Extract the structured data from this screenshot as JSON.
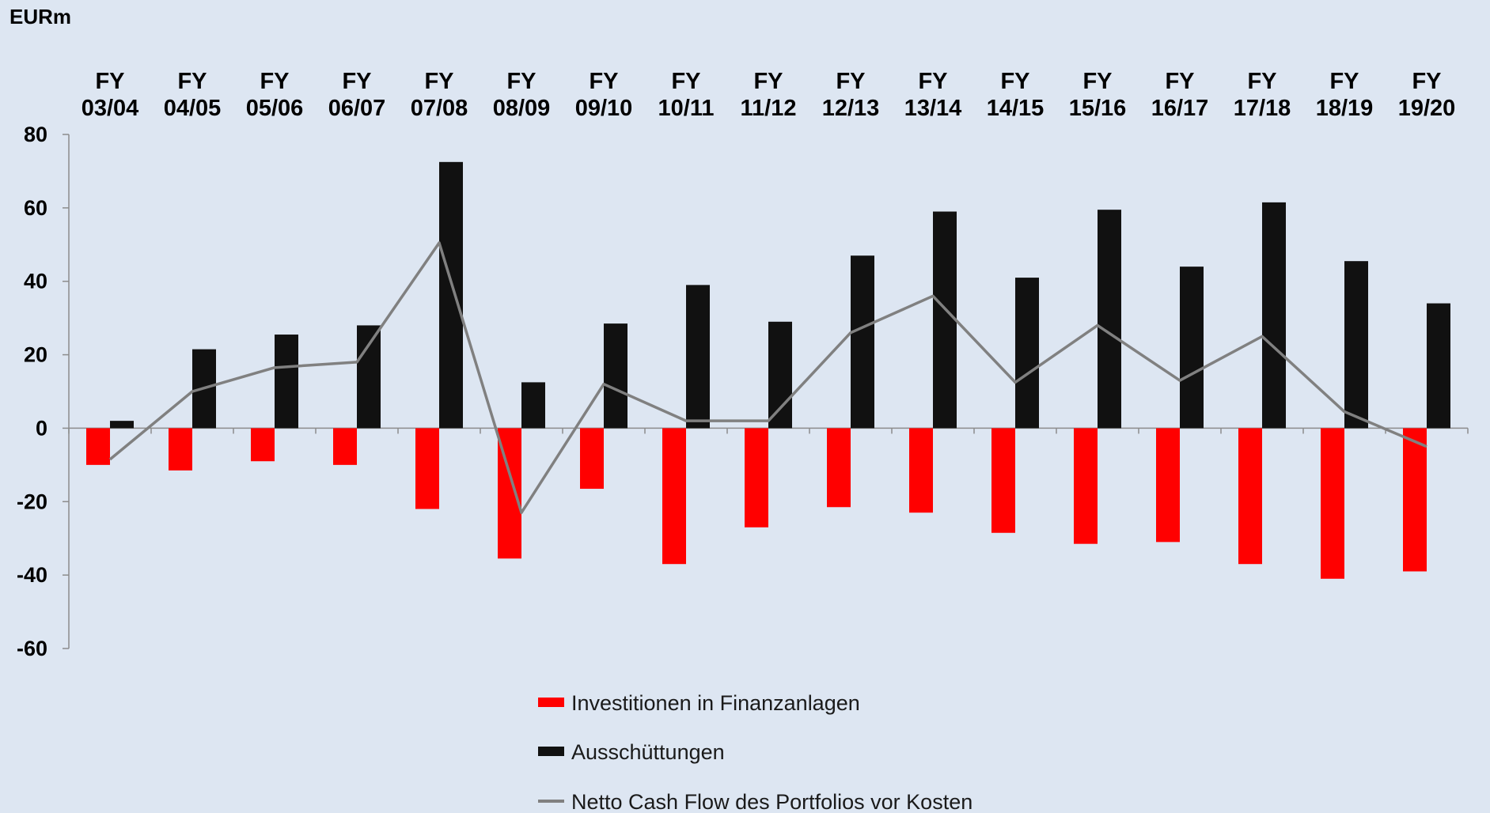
{
  "chart_data": {
    "type": "bar",
    "unit_label": "EURm",
    "categories": [
      [
        "FY",
        "03/04"
      ],
      [
        "FY",
        "04/05"
      ],
      [
        "FY",
        "05/06"
      ],
      [
        "FY",
        "06/07"
      ],
      [
        "FY",
        "07/08"
      ],
      [
        "FY",
        "08/09"
      ],
      [
        "FY",
        "09/10"
      ],
      [
        "FY",
        "10/11"
      ],
      [
        "FY",
        "11/12"
      ],
      [
        "FY",
        "12/13"
      ],
      [
        "FY",
        "13/14"
      ],
      [
        "FY",
        "14/15"
      ],
      [
        "FY",
        "15/16"
      ],
      [
        "FY",
        "16/17"
      ],
      [
        "FY",
        "17/18"
      ],
      [
        "FY",
        "18/19"
      ],
      [
        "FY",
        "19/20"
      ]
    ],
    "ylim": [
      -60,
      80
    ],
    "yticks": [
      80,
      60,
      40,
      20,
      0,
      -20,
      -40,
      -60
    ],
    "grid": false,
    "legend_position": "bottom-center",
    "series": [
      {
        "name": "Investitionen in Finanzanlagen",
        "kind": "bar",
        "color": "#ff0000",
        "values": [
          -10,
          -11.5,
          -9,
          -10,
          -22,
          -35.5,
          -16.5,
          -37,
          -27,
          -21.5,
          -23,
          -28.5,
          -31.5,
          -31,
          -37,
          -41,
          -39
        ]
      },
      {
        "name": "Ausschüttungen",
        "kind": "bar",
        "color": "#111111",
        "values": [
          2,
          21.5,
          25.5,
          28,
          72.5,
          12.5,
          28.5,
          39,
          29,
          47,
          59,
          41,
          59.5,
          44,
          61.5,
          45.5,
          34
        ]
      },
      {
        "name": "Netto Cash Flow des Portfolios vor Kosten",
        "kind": "line",
        "color": "#808080",
        "values": [
          -8.5,
          10,
          16.5,
          18,
          50.5,
          -23,
          12,
          2,
          2,
          26,
          36,
          12.5,
          28,
          13,
          25,
          4.5,
          -5
        ]
      }
    ]
  }
}
